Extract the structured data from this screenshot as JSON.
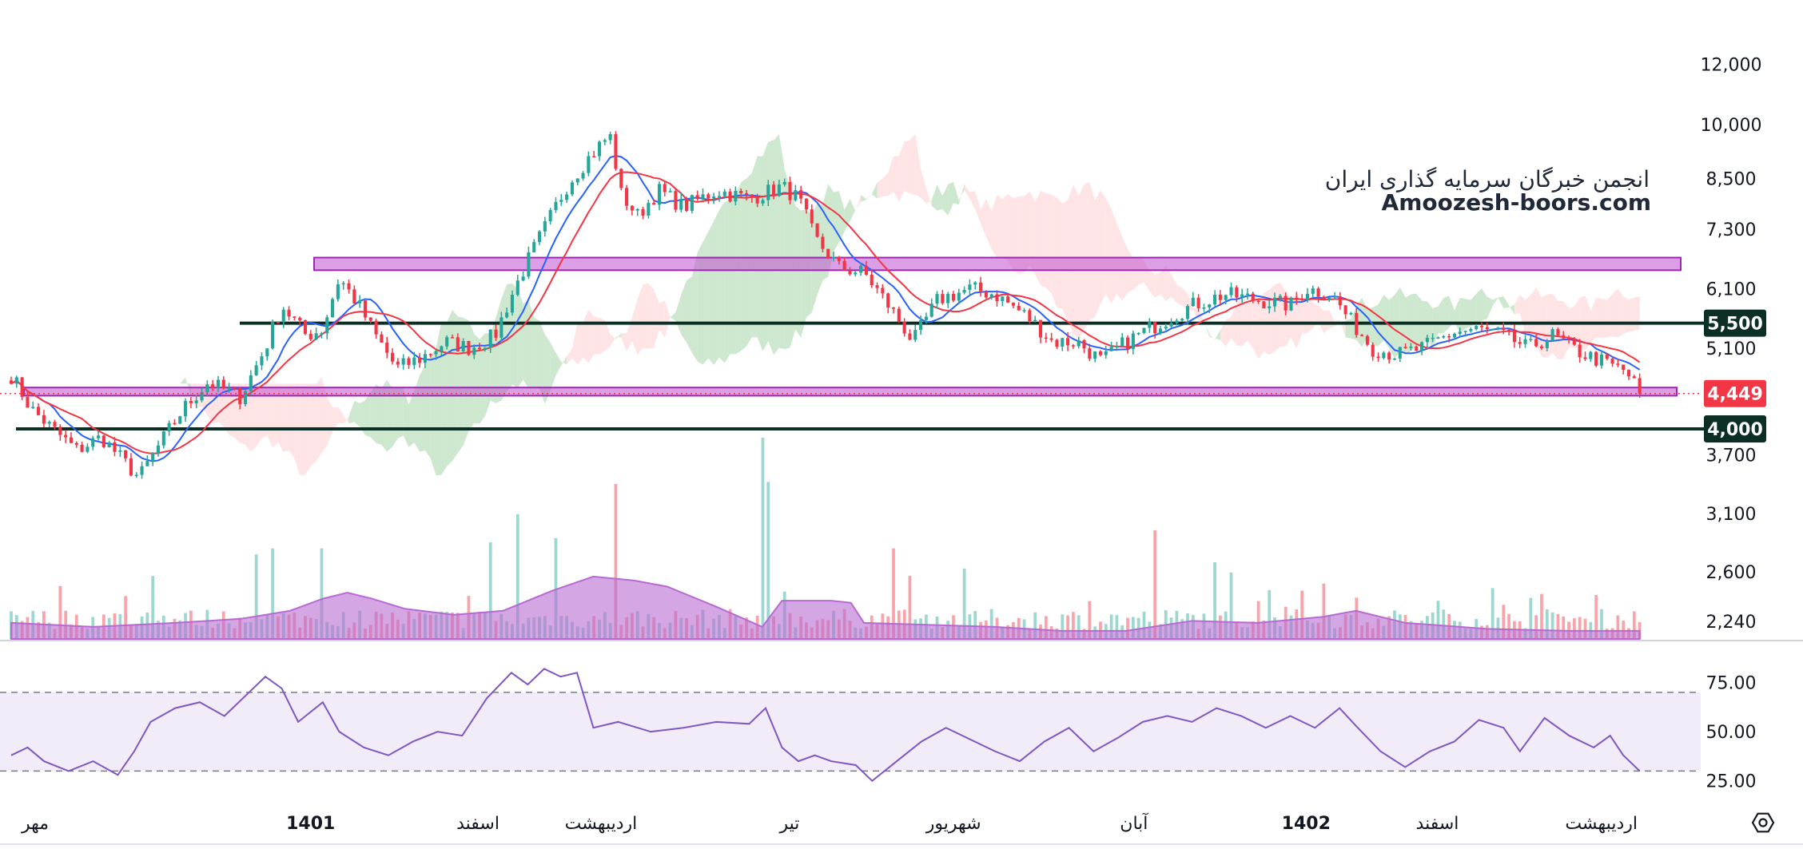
{
  "watermark": {
    "line1": "انجمن خبرگان سرمایه گذاری ایران",
    "line2": "Amoozesh-boors.com"
  },
  "colors": {
    "up": "#26a69a",
    "down": "#f23645",
    "ma_fast": "#2962ff",
    "ma_slow": "#f23645",
    "zone": "#c050d0",
    "level_line": "#0b2e25",
    "cloud_green": "#a5d6a7",
    "cloud_red": "#ffcdd2",
    "volume_ma": "#b76ad0",
    "rsi_line": "#7e57c2",
    "rsi_band": "#ede7f6",
    "price_tag_red": "#f23645",
    "level_tag": "#0b2e25"
  },
  "icons": {
    "settings": "hexagon-gear-icon"
  },
  "chart_data": {
    "type": "candlestick",
    "price_axis": {
      "scale": "log",
      "ticks": [
        "12,000",
        "10,000",
        "8,500",
        "7,300",
        "6,100",
        "5,100",
        "3,700",
        "3,100",
        "2,600",
        "2,240"
      ],
      "tick_values": [
        12000,
        10000,
        8500,
        7300,
        6100,
        5100,
        3700,
        3100,
        2600,
        2240
      ],
      "ylim": [
        2150,
        12600
      ]
    },
    "level_tags": [
      "5,500",
      "4,000"
    ],
    "level_values": [
      5500,
      4000
    ],
    "last_price_label": "4,449",
    "last_price": 4449,
    "resistance_zone": [
      6450,
      6700
    ],
    "support_zone": [
      4420,
      4530
    ],
    "x_axis": {
      "labels": [
        "مهر",
        "1401",
        "اسفند",
        "اردیبهشت",
        "تیر",
        "شهریور",
        "آبان",
        "1402",
        "اسفند",
        "اردیبهشت"
      ],
      "bold": [
        false,
        true,
        false,
        false,
        false,
        false,
        false,
        true,
        false,
        false
      ],
      "positions": [
        0.0,
        0.168,
        0.27,
        0.345,
        0.46,
        0.56,
        0.67,
        0.775,
        0.855,
        0.955
      ]
    },
    "price_path": [
      [
        0.0,
        4700
      ],
      [
        0.012,
        4250
      ],
      [
        0.025,
        4000
      ],
      [
        0.04,
        3750
      ],
      [
        0.055,
        3900
      ],
      [
        0.07,
        3600
      ],
      [
        0.078,
        3450
      ],
      [
        0.09,
        3800
      ],
      [
        0.105,
        4250
      ],
      [
        0.12,
        4600
      ],
      [
        0.14,
        4400
      ],
      [
        0.155,
        5100
      ],
      [
        0.165,
        5800
      ],
      [
        0.18,
        5300
      ],
      [
        0.19,
        5400
      ],
      [
        0.2,
        6300
      ],
      [
        0.212,
        5800
      ],
      [
        0.222,
        5300
      ],
      [
        0.235,
        4800
      ],
      [
        0.25,
        4950
      ],
      [
        0.265,
        5200
      ],
      [
        0.28,
        5100
      ],
      [
        0.295,
        5300
      ],
      [
        0.31,
        6300
      ],
      [
        0.325,
        7300
      ],
      [
        0.34,
        8400
      ],
      [
        0.355,
        9200
      ],
      [
        0.365,
        9700
      ],
      [
        0.372,
        8100
      ],
      [
        0.382,
        7600
      ],
      [
        0.395,
        8200
      ],
      [
        0.41,
        7800
      ],
      [
        0.43,
        8200
      ],
      [
        0.45,
        8000
      ],
      [
        0.47,
        8300
      ],
      [
        0.48,
        8000
      ],
      [
        0.49,
        7100
      ],
      [
        0.505,
        6500
      ],
      [
        0.52,
        6400
      ],
      [
        0.535,
        5800
      ],
      [
        0.55,
        5200
      ],
      [
        0.565,
        5900
      ],
      [
        0.585,
        6100
      ],
      [
        0.6,
        6000
      ],
      [
        0.62,
        5600
      ],
      [
        0.635,
        5200
      ],
      [
        0.65,
        5200
      ],
      [
        0.665,
        4900
      ],
      [
        0.68,
        5200
      ],
      [
        0.7,
        5500
      ],
      [
        0.72,
        5800
      ],
      [
        0.74,
        6000
      ],
      [
        0.76,
        5900
      ],
      [
        0.78,
        5800
      ],
      [
        0.79,
        6100
      ],
      [
        0.805,
        6000
      ],
      [
        0.815,
        5600
      ],
      [
        0.83,
        5100
      ],
      [
        0.845,
        5000
      ],
      [
        0.86,
        5100
      ],
      [
        0.88,
        5350
      ],
      [
        0.895,
        5400
      ],
      [
        0.91,
        5300
      ],
      [
        0.925,
        5100
      ],
      [
        0.94,
        5300
      ],
      [
        0.955,
        5050
      ],
      [
        0.97,
        4900
      ],
      [
        0.985,
        4750
      ],
      [
        0.993,
        4449
      ]
    ],
    "volume_peaks": [
      {
        "x": 0.148,
        "v": 0.42
      },
      {
        "x": 0.16,
        "v": 0.45
      },
      {
        "x": 0.19,
        "v": 0.45
      },
      {
        "x": 0.292,
        "v": 0.48
      },
      {
        "x": 0.31,
        "v": 0.62
      },
      {
        "x": 0.333,
        "v": 0.5
      },
      {
        "x": 0.37,
        "v": 0.77
      },
      {
        "x": 0.458,
        "v": 1.0
      },
      {
        "x": 0.463,
        "v": 0.78
      },
      {
        "x": 0.539,
        "v": 0.45
      },
      {
        "x": 0.582,
        "v": 0.35
      },
      {
        "x": 0.697,
        "v": 0.54
      },
      {
        "x": 0.787,
        "v": 0.24
      },
      {
        "x": 0.8,
        "v": 0.22
      },
      {
        "x": 0.91,
        "v": 0.17
      }
    ],
    "volume_ma": [
      [
        0.0,
        0.08
      ],
      [
        0.05,
        0.06
      ],
      [
        0.1,
        0.08
      ],
      [
        0.14,
        0.1
      ],
      [
        0.17,
        0.14
      ],
      [
        0.19,
        0.2
      ],
      [
        0.205,
        0.23
      ],
      [
        0.22,
        0.2
      ],
      [
        0.24,
        0.15
      ],
      [
        0.27,
        0.12
      ],
      [
        0.3,
        0.14
      ],
      [
        0.33,
        0.24
      ],
      [
        0.355,
        0.31
      ],
      [
        0.38,
        0.29
      ],
      [
        0.4,
        0.26
      ],
      [
        0.43,
        0.16
      ],
      [
        0.458,
        0.06
      ],
      [
        0.47,
        0.19
      ],
      [
        0.5,
        0.19
      ],
      [
        0.512,
        0.18
      ],
      [
        0.52,
        0.08
      ],
      [
        0.56,
        0.07
      ],
      [
        0.6,
        0.06
      ],
      [
        0.64,
        0.04
      ],
      [
        0.68,
        0.04
      ],
      [
        0.72,
        0.09
      ],
      [
        0.76,
        0.08
      ],
      [
        0.8,
        0.11
      ],
      [
        0.82,
        0.14
      ],
      [
        0.85,
        0.08
      ],
      [
        0.9,
        0.05
      ],
      [
        0.95,
        0.04
      ],
      [
        0.993,
        0.04
      ]
    ],
    "rsi": {
      "ticks": [
        "75.00",
        "50.00",
        "25.00"
      ],
      "tick_values": [
        75,
        50,
        25
      ],
      "ylim": [
        20,
        85
      ],
      "upper": 70,
      "lower": 30,
      "path": [
        [
          0.0,
          38
        ],
        [
          0.01,
          42
        ],
        [
          0.02,
          35
        ],
        [
          0.035,
          30
        ],
        [
          0.05,
          35
        ],
        [
          0.065,
          28
        ],
        [
          0.075,
          40
        ],
        [
          0.085,
          55
        ],
        [
          0.1,
          62
        ],
        [
          0.115,
          65
        ],
        [
          0.13,
          58
        ],
        [
          0.145,
          70
        ],
        [
          0.155,
          78
        ],
        [
          0.165,
          72
        ],
        [
          0.175,
          55
        ],
        [
          0.19,
          65
        ],
        [
          0.2,
          50
        ],
        [
          0.215,
          42
        ],
        [
          0.23,
          38
        ],
        [
          0.245,
          45
        ],
        [
          0.26,
          50
        ],
        [
          0.275,
          48
        ],
        [
          0.29,
          67
        ],
        [
          0.305,
          80
        ],
        [
          0.315,
          74
        ],
        [
          0.325,
          82
        ],
        [
          0.335,
          78
        ],
        [
          0.345,
          80
        ],
        [
          0.355,
          52
        ],
        [
          0.37,
          55
        ],
        [
          0.39,
          50
        ],
        [
          0.41,
          52
        ],
        [
          0.43,
          55
        ],
        [
          0.45,
          54
        ],
        [
          0.46,
          62
        ],
        [
          0.47,
          42
        ],
        [
          0.48,
          35
        ],
        [
          0.49,
          38
        ],
        [
          0.5,
          35
        ],
        [
          0.515,
          33
        ],
        [
          0.525,
          25
        ],
        [
          0.54,
          35
        ],
        [
          0.555,
          45
        ],
        [
          0.57,
          52
        ],
        [
          0.585,
          46
        ],
        [
          0.6,
          40
        ],
        [
          0.615,
          35
        ],
        [
          0.63,
          45
        ],
        [
          0.645,
          52
        ],
        [
          0.66,
          40
        ],
        [
          0.675,
          47
        ],
        [
          0.69,
          55
        ],
        [
          0.705,
          58
        ],
        [
          0.72,
          55
        ],
        [
          0.735,
          62
        ],
        [
          0.75,
          58
        ],
        [
          0.765,
          52
        ],
        [
          0.78,
          58
        ],
        [
          0.795,
          52
        ],
        [
          0.81,
          62
        ],
        [
          0.82,
          53
        ],
        [
          0.835,
          40
        ],
        [
          0.85,
          32
        ],
        [
          0.865,
          40
        ],
        [
          0.88,
          45
        ],
        [
          0.895,
          56
        ],
        [
          0.91,
          52
        ],
        [
          0.92,
          40
        ],
        [
          0.935,
          57
        ],
        [
          0.95,
          48
        ],
        [
          0.965,
          42
        ],
        [
          0.975,
          48
        ],
        [
          0.983,
          38
        ],
        [
          0.993,
          30
        ]
      ]
    }
  }
}
